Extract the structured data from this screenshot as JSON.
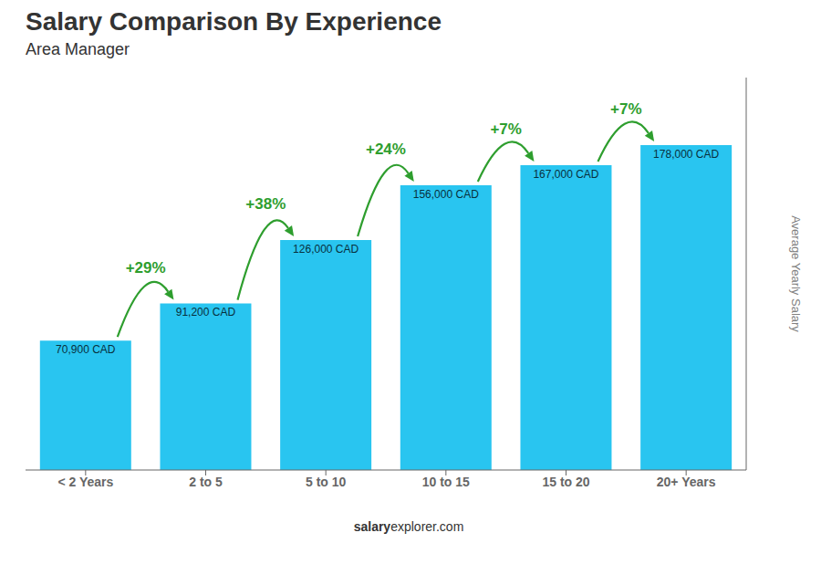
{
  "chart_data": {
    "type": "bar",
    "title": "Salary Comparison By Experience",
    "subtitle": "Area Manager",
    "y_label": "Average Yearly Salary",
    "categories": [
      "< 2 Years",
      "2 to 5",
      "5 to 10",
      "10 to 15",
      "15 to 20",
      "20+ Years"
    ],
    "values": [
      70900,
      91200,
      126000,
      156000,
      167000,
      178000
    ],
    "value_labels": [
      "70,900 CAD",
      "91,200 CAD",
      "126,000 CAD",
      "156,000 CAD",
      "167,000 CAD",
      "178,000 CAD"
    ],
    "data_labels": true,
    "color": "#29c5f0",
    "ylim": [
      0,
      215000
    ],
    "tick_labels": "x",
    "annotations": [
      "+29%",
      "+38%",
      "+24%",
      "+7%",
      "+7%"
    ],
    "watermark": [
      "salary",
      "explorer.com"
    ]
  }
}
